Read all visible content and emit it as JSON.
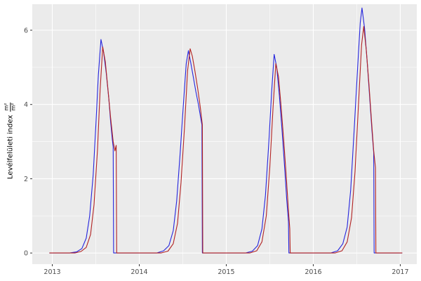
{
  "figure": {
    "background": "#FFFFFF",
    "panel_background": "#EBEBEB",
    "grid_color": "#FFFFFF",
    "tick_label_color": "#4D4D4D",
    "tick_mark_color": "#333333",
    "axis_title_color": "#000000"
  },
  "axes": {
    "ylabel_text": "Levélfelületi index",
    "ylabel_frac_numerator": "m²",
    "ylabel_frac_denominator": "m²"
  },
  "chart_data": {
    "type": "line",
    "title": "",
    "xlabel": "",
    "ylabel": "Levélfelületi index (m²/m²)",
    "grid": true,
    "legend": "none",
    "x_ticks": [
      2013,
      2014,
      2015,
      2016,
      2017
    ],
    "x_minor_ticks": [
      2013.5,
      2014.5,
      2015.5,
      2016.5
    ],
    "y_ticks": [
      0,
      2,
      4,
      6
    ],
    "y_minor_ticks": [
      1,
      3,
      5
    ],
    "xlim": [
      2012.77,
      2017.19
    ],
    "ylim": [
      -0.3,
      6.7
    ],
    "series": [
      {
        "name": "series-blue",
        "color": "#2424DD",
        "points": [
          [
            2012.97,
            0
          ],
          [
            2013.2,
            0
          ],
          [
            2013.28,
            0.03
          ],
          [
            2013.34,
            0.12
          ],
          [
            2013.39,
            0.4
          ],
          [
            2013.43,
            1.0
          ],
          [
            2013.47,
            2.1
          ],
          [
            2013.5,
            3.4
          ],
          [
            2013.53,
            4.8
          ],
          [
            2013.56,
            5.75
          ],
          [
            2013.59,
            5.4
          ],
          [
            2013.62,
            4.85
          ],
          [
            2013.65,
            4.15
          ],
          [
            2013.67,
            3.55
          ],
          [
            2013.69,
            3.05
          ],
          [
            2013.7,
            2.85
          ],
          [
            2013.705,
            0
          ],
          [
            2014.2,
            0
          ],
          [
            2014.28,
            0.06
          ],
          [
            2014.34,
            0.2
          ],
          [
            2014.39,
            0.6
          ],
          [
            2014.43,
            1.4
          ],
          [
            2014.47,
            2.7
          ],
          [
            2014.51,
            4.1
          ],
          [
            2014.54,
            5.1
          ],
          [
            2014.565,
            5.45
          ],
          [
            2014.59,
            5.15
          ],
          [
            2014.62,
            4.75
          ],
          [
            2014.65,
            4.35
          ],
          [
            2014.68,
            4.0
          ],
          [
            2014.705,
            3.65
          ],
          [
            2014.72,
            3.45
          ],
          [
            2014.725,
            0
          ],
          [
            2015.22,
            0
          ],
          [
            2015.3,
            0.05
          ],
          [
            2015.36,
            0.2
          ],
          [
            2015.41,
            0.65
          ],
          [
            2015.45,
            1.55
          ],
          [
            2015.49,
            3.0
          ],
          [
            2015.52,
            4.3
          ],
          [
            2015.55,
            5.35
          ],
          [
            2015.58,
            5.0
          ],
          [
            2015.61,
            4.25
          ],
          [
            2015.64,
            3.35
          ],
          [
            2015.67,
            2.35
          ],
          [
            2015.695,
            1.45
          ],
          [
            2015.715,
            0.85
          ],
          [
            2015.72,
            0
          ],
          [
            2016.2,
            0
          ],
          [
            2016.28,
            0.06
          ],
          [
            2016.34,
            0.25
          ],
          [
            2016.39,
            0.7
          ],
          [
            2016.43,
            1.7
          ],
          [
            2016.47,
            3.3
          ],
          [
            2016.51,
            5.0
          ],
          [
            2016.54,
            6.2
          ],
          [
            2016.56,
            6.6
          ],
          [
            2016.59,
            6.05
          ],
          [
            2016.62,
            5.15
          ],
          [
            2016.65,
            4.15
          ],
          [
            2016.675,
            3.3
          ],
          [
            2016.695,
            2.7
          ],
          [
            2016.7,
            0
          ],
          [
            2017.02,
            0
          ]
        ]
      },
      {
        "name": "series-red",
        "color": "#B22222",
        "points": [
          [
            2012.97,
            0
          ],
          [
            2013.26,
            0
          ],
          [
            2013.33,
            0.04
          ],
          [
            2013.39,
            0.15
          ],
          [
            2013.44,
            0.5
          ],
          [
            2013.48,
            1.3
          ],
          [
            2013.52,
            2.8
          ],
          [
            2013.55,
            4.4
          ],
          [
            2013.58,
            5.55
          ],
          [
            2013.61,
            5.15
          ],
          [
            2013.64,
            4.4
          ],
          [
            2013.67,
            3.65
          ],
          [
            2013.7,
            3.0
          ],
          [
            2013.72,
            2.75
          ],
          [
            2013.735,
            2.9
          ],
          [
            2013.74,
            0
          ],
          [
            2014.25,
            0
          ],
          [
            2014.33,
            0.05
          ],
          [
            2014.39,
            0.25
          ],
          [
            2014.44,
            0.8
          ],
          [
            2014.48,
            1.9
          ],
          [
            2014.52,
            3.4
          ],
          [
            2014.555,
            4.9
          ],
          [
            2014.585,
            5.5
          ],
          [
            2014.61,
            5.3
          ],
          [
            2014.64,
            4.9
          ],
          [
            2014.67,
            4.45
          ],
          [
            2014.7,
            3.95
          ],
          [
            2014.725,
            3.45
          ],
          [
            2014.73,
            0
          ],
          [
            2015.27,
            0
          ],
          [
            2015.35,
            0.06
          ],
          [
            2015.41,
            0.3
          ],
          [
            2015.46,
            1.0
          ],
          [
            2015.5,
            2.3
          ],
          [
            2015.54,
            4.0
          ],
          [
            2015.57,
            5.1
          ],
          [
            2015.6,
            4.75
          ],
          [
            2015.63,
            3.95
          ],
          [
            2015.66,
            3.05
          ],
          [
            2015.69,
            2.05
          ],
          [
            2015.715,
            1.15
          ],
          [
            2015.73,
            0.65
          ],
          [
            2015.735,
            0
          ],
          [
            2016.25,
            0
          ],
          [
            2016.33,
            0.06
          ],
          [
            2016.39,
            0.3
          ],
          [
            2016.44,
            0.95
          ],
          [
            2016.48,
            2.2
          ],
          [
            2016.52,
            4.0
          ],
          [
            2016.555,
            5.6
          ],
          [
            2016.58,
            6.1
          ],
          [
            2016.61,
            5.45
          ],
          [
            2016.64,
            4.55
          ],
          [
            2016.67,
            3.55
          ],
          [
            2016.695,
            2.75
          ],
          [
            2016.715,
            2.3
          ],
          [
            2016.72,
            0
          ],
          [
            2017.02,
            0
          ]
        ]
      }
    ]
  }
}
